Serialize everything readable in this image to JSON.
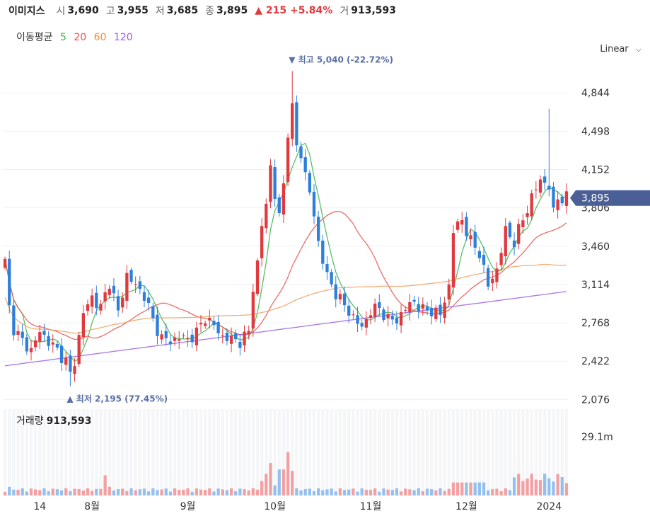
{
  "header": {
    "name": "이미지스",
    "open_label": "시",
    "open": "3,690",
    "high_label": "고",
    "high": "3,955",
    "low_label": "저",
    "low": "3,685",
    "close_label": "종",
    "close": "3,895",
    "change": "▲ 215 +5.84%",
    "volume_label": "거",
    "volume": "913,593"
  },
  "ma_legend": {
    "title": "이동평균",
    "periods": [
      {
        "label": "5",
        "color": "#3cb44b"
      },
      {
        "label": "20",
        "color": "#e8534f"
      },
      {
        "label": "60",
        "color": "#f08c3a"
      },
      {
        "label": "120",
        "color": "#9b5de5"
      }
    ]
  },
  "scale_selector": {
    "value": "Linear"
  },
  "volume_panel": {
    "label": "거래량",
    "value": "913,593"
  },
  "colors": {
    "up": "#e0393e",
    "down": "#2d7fdc",
    "badge": "#4a5f96"
  },
  "chart_data": {
    "type": "candlestick",
    "y_ticks": [
      "4,844",
      "4,498",
      "4,152",
      "3,806",
      "3,460",
      "3,114",
      "2,768",
      "2,422",
      "2,076"
    ],
    "y_tick_values": [
      4844,
      4498,
      4152,
      3806,
      3460,
      3114,
      2768,
      2422,
      2076
    ],
    "ylim": [
      2040,
      5120
    ],
    "x_ticks": [
      {
        "label": "14",
        "index": 8
      },
      {
        "label": "8월",
        "index": 20
      },
      {
        "label": "9월",
        "index": 42
      },
      {
        "label": "10월",
        "index": 62
      },
      {
        "label": "11월",
        "index": 84
      },
      {
        "label": "12월",
        "index": 106
      },
      {
        "label": "2024",
        "index": 125
      }
    ],
    "last_price_label": "3,895",
    "last_price": 3895,
    "max_annotation": {
      "text": "▼ 최고 5,040 (-22.72%)",
      "value": 5040,
      "index": 66
    },
    "min_annotation": {
      "text": "▲ 최저 2,195 (77.45%)",
      "value": 2195,
      "index": 15
    },
    "volume_axis_label": "29.1m",
    "volume_axis_value": 29.1,
    "volume_unit": "m",
    "candles": [],
    "ma_periods": [
      5,
      20,
      60,
      120
    ]
  }
}
